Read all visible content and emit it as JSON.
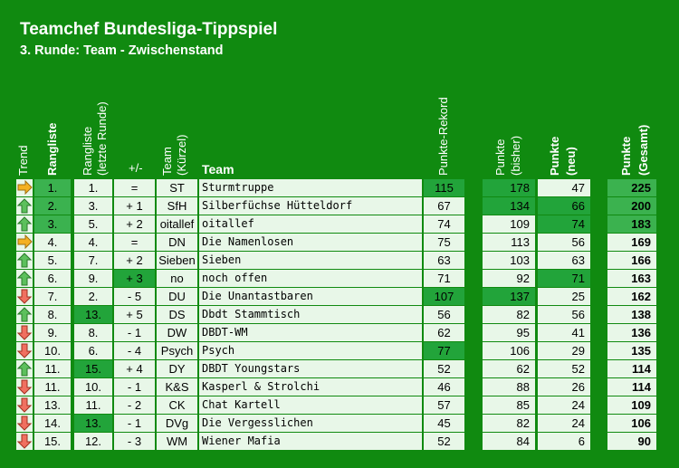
{
  "title": "Teamchef Bundesliga-Tippspiel",
  "subtitle": "3. Runde: Team - Zwischenstand",
  "headers": {
    "trend": "Trend",
    "rangliste": "Rangliste",
    "letzte_1": "Rangliste",
    "letzte_2": "(letzte Runde)",
    "diff": "+/-",
    "kuerzel_1": "Team",
    "kuerzel_2": "(Kürzel)",
    "team": "Team",
    "rekord": "Punkte-Rekord",
    "bisher_1": "Punkte",
    "bisher_2": "(bisher)",
    "neu_1": "Punkte",
    "neu_2": "(neu)",
    "gesamt_1": "Punkte",
    "gesamt_2": "(Gesamt)"
  },
  "colors": {
    "up": "#5cc05c",
    "down": "#f07060",
    "same": "#f4b022"
  },
  "rows": [
    {
      "trend": "same",
      "rank": "1.",
      "last": "1.",
      "diff": "=",
      "abbr": "ST",
      "team": "Sturmtruppe",
      "rekord": "115",
      "bisher": "178",
      "neu": "47",
      "gesamt": "225",
      "hl_rank": true,
      "hl_last": false,
      "hl_rekord": true,
      "hl_bisher": true,
      "hl_neu": false,
      "hl_gesamt": true
    },
    {
      "trend": "up",
      "rank": "2.",
      "last": "3.",
      "diff": "+ 1",
      "abbr": "SfH",
      "team": "Silberfüchse Hütteldorf",
      "rekord": "67",
      "bisher": "134",
      "neu": "66",
      "gesamt": "200",
      "hl_rank": true,
      "hl_last": false,
      "hl_rekord": false,
      "hl_bisher": true,
      "hl_neu": true,
      "hl_gesamt": true
    },
    {
      "trend": "up",
      "rank": "3.",
      "last": "5.",
      "diff": "+ 2",
      "abbr": "oitallef",
      "team": "oitallef",
      "rekord": "74",
      "bisher": "109",
      "neu": "74",
      "gesamt": "183",
      "hl_rank": true,
      "hl_last": false,
      "hl_rekord": false,
      "hl_bisher": false,
      "hl_neu": true,
      "hl_gesamt": true
    },
    {
      "trend": "same",
      "rank": "4.",
      "last": "4.",
      "diff": "=",
      "abbr": "DN",
      "team": "Die Namenlosen",
      "rekord": "75",
      "bisher": "113",
      "neu": "56",
      "gesamt": "169",
      "hl_rank": false,
      "hl_last": false,
      "hl_rekord": false,
      "hl_bisher": false,
      "hl_neu": false,
      "hl_gesamt": false
    },
    {
      "trend": "up",
      "rank": "5.",
      "last": "7.",
      "diff": "+ 2",
      "abbr": "Sieben",
      "team": "Sieben",
      "rekord": "63",
      "bisher": "103",
      "neu": "63",
      "gesamt": "166",
      "hl_rank": false,
      "hl_last": false,
      "hl_rekord": false,
      "hl_bisher": false,
      "hl_neu": false,
      "hl_gesamt": false
    },
    {
      "trend": "up",
      "rank": "6.",
      "last": "9.",
      "diff": "+ 3",
      "abbr": "no",
      "team": "noch offen",
      "rekord": "71",
      "bisher": "92",
      "neu": "71",
      "gesamt": "163",
      "hl_rank": false,
      "hl_last": false,
      "hl_rekord": false,
      "hl_bisher": false,
      "hl_neu": true,
      "hl_gesamt": false,
      "hl_diff": true
    },
    {
      "trend": "down",
      "rank": "7.",
      "last": "2.",
      "diff": "- 5",
      "abbr": "DU",
      "team": "Die Unantastbaren",
      "rekord": "107",
      "bisher": "137",
      "neu": "25",
      "gesamt": "162",
      "hl_rank": false,
      "hl_last": false,
      "hl_rekord": true,
      "hl_bisher": true,
      "hl_neu": false,
      "hl_gesamt": false
    },
    {
      "trend": "up",
      "rank": "8.",
      "last": "13.",
      "diff": "+ 5",
      "abbr": "DS",
      "team": "Dbdt Stammtisch",
      "rekord": "56",
      "bisher": "82",
      "neu": "56",
      "gesamt": "138",
      "hl_rank": false,
      "hl_last": true,
      "hl_rekord": false,
      "hl_bisher": false,
      "hl_neu": false,
      "hl_gesamt": false
    },
    {
      "trend": "down",
      "rank": "9.",
      "last": "8.",
      "diff": "- 1",
      "abbr": "DW",
      "team": "DBDT-WM",
      "rekord": "62",
      "bisher": "95",
      "neu": "41",
      "gesamt": "136",
      "hl_rank": false,
      "hl_last": false,
      "hl_rekord": false,
      "hl_bisher": false,
      "hl_neu": false,
      "hl_gesamt": false
    },
    {
      "trend": "down",
      "rank": "10.",
      "last": "6.",
      "diff": "- 4",
      "abbr": "Psych",
      "team": "Psych",
      "rekord": "77",
      "bisher": "106",
      "neu": "29",
      "gesamt": "135",
      "hl_rank": false,
      "hl_last": false,
      "hl_rekord": true,
      "hl_bisher": false,
      "hl_neu": false,
      "hl_gesamt": false
    },
    {
      "trend": "up",
      "rank": "11.",
      "last": "15.",
      "diff": "+ 4",
      "abbr": "DY",
      "team": "DBDT Youngstars",
      "rekord": "52",
      "bisher": "62",
      "neu": "52",
      "gesamt": "114",
      "hl_rank": false,
      "hl_last": true,
      "hl_rekord": false,
      "hl_bisher": false,
      "hl_neu": false,
      "hl_gesamt": false
    },
    {
      "trend": "down",
      "rank": "11.",
      "last": "10.",
      "diff": "- 1",
      "abbr": "K&S",
      "team": "Kasperl & Strolchi",
      "rekord": "46",
      "bisher": "88",
      "neu": "26",
      "gesamt": "114",
      "hl_rank": false,
      "hl_last": false,
      "hl_rekord": false,
      "hl_bisher": false,
      "hl_neu": false,
      "hl_gesamt": false
    },
    {
      "trend": "down",
      "rank": "13.",
      "last": "11.",
      "diff": "- 2",
      "abbr": "CK",
      "team": "Chat Kartell",
      "rekord": "57",
      "bisher": "85",
      "neu": "24",
      "gesamt": "109",
      "hl_rank": false,
      "hl_last": false,
      "hl_rekord": false,
      "hl_bisher": false,
      "hl_neu": false,
      "hl_gesamt": false
    },
    {
      "trend": "down",
      "rank": "14.",
      "last": "13.",
      "diff": "- 1",
      "abbr": "DVg",
      "team": "Die Vergesslichen",
      "rekord": "45",
      "bisher": "82",
      "neu": "24",
      "gesamt": "106",
      "hl_rank": false,
      "hl_last": true,
      "hl_rekord": false,
      "hl_bisher": false,
      "hl_neu": false,
      "hl_gesamt": false
    },
    {
      "trend": "down",
      "rank": "15.",
      "last": "12.",
      "diff": "- 3",
      "abbr": "WM",
      "team": "Wiener Mafia",
      "rekord": "52",
      "bisher": "84",
      "neu": "6",
      "gesamt": "90",
      "hl_rank": false,
      "hl_last": false,
      "hl_rekord": false,
      "hl_bisher": false,
      "hl_neu": false,
      "hl_gesamt": false
    }
  ]
}
